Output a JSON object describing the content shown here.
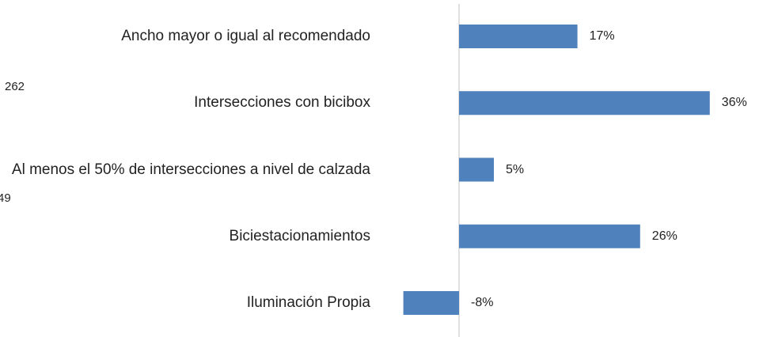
{
  "chart_data": {
    "type": "bar",
    "orientation": "horizontal",
    "categories": [
      "Ancho mayor o igual al recomendado",
      "Intersecciones con bicibox",
      "Al menos el 50% de intersecciones a nivel de calzada",
      "Biciestacionamientos",
      "Iluminación Propia"
    ],
    "values": [
      17,
      36,
      5,
      26,
      -8
    ],
    "value_labels": [
      "17%",
      "36%",
      "5%",
      "26%",
      "-8%"
    ],
    "color": "#4f81bd",
    "xlim": [
      -10,
      40
    ],
    "annotations": [
      "262",
      "49"
    ]
  }
}
